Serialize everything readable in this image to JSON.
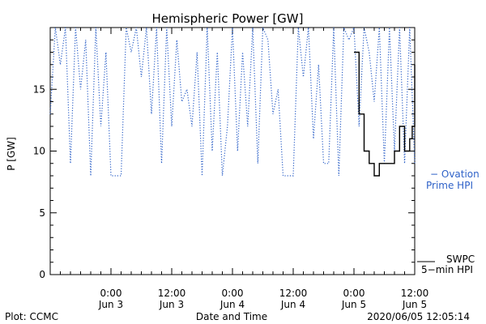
{
  "chart_data": {
    "type": "line",
    "title": "Hemispheric Power [GW]",
    "xlabel": "Date and Time",
    "ylabel": "P [GW]",
    "ylim": [
      0,
      20
    ],
    "yticks": [
      0,
      5,
      10,
      15
    ],
    "xlim": [
      "2020-06-02T12:00",
      "2020-06-05T12:00"
    ],
    "x_tick_labels": [
      {
        "t": "2020-06-03T00:00",
        "line1": "0:00",
        "line2": "Jun 3"
      },
      {
        "t": "2020-06-03T12:00",
        "line1": "12:00",
        "line2": "Jun 3"
      },
      {
        "t": "2020-06-04T00:00",
        "line1": "0:00",
        "line2": "Jun 4"
      },
      {
        "t": "2020-06-04T12:00",
        "line1": "12:00",
        "line2": "Jun 4"
      },
      {
        "t": "2020-06-05T00:00",
        "line1": "0:00",
        "line2": "Jun 5"
      },
      {
        "t": "2020-06-05T12:00",
        "line1": "12:00",
        "line2": "Jun 5"
      }
    ],
    "grid": false,
    "legend_placement": "right",
    "series": [
      {
        "name": "− Ovation Prime HPI",
        "legend_lines": [
          "− Ovation",
          "Prime HPI"
        ],
        "style": "dotted",
        "color": "#2f62c8",
        "x": [
          "2020-06-02T12:00",
          "2020-06-02T13:00",
          "2020-06-02T14:00",
          "2020-06-02T15:00",
          "2020-06-02T16:00",
          "2020-06-02T17:00",
          "2020-06-02T18:00",
          "2020-06-02T19:00",
          "2020-06-02T20:00",
          "2020-06-02T21:00",
          "2020-06-02T22:00",
          "2020-06-02T23:00",
          "2020-06-03T00:00",
          "2020-06-03T01:00",
          "2020-06-03T02:00",
          "2020-06-03T03:00",
          "2020-06-03T04:00",
          "2020-06-03T05:00",
          "2020-06-03T06:00",
          "2020-06-03T07:00",
          "2020-06-03T08:00",
          "2020-06-03T09:00",
          "2020-06-03T10:00",
          "2020-06-03T11:00",
          "2020-06-03T12:00",
          "2020-06-03T13:00",
          "2020-06-03T14:00",
          "2020-06-03T15:00",
          "2020-06-03T16:00",
          "2020-06-03T17:00",
          "2020-06-03T18:00",
          "2020-06-03T19:00",
          "2020-06-03T20:00",
          "2020-06-03T21:00",
          "2020-06-03T22:00",
          "2020-06-03T23:00",
          "2020-06-04T00:00",
          "2020-06-04T01:00",
          "2020-06-04T02:00",
          "2020-06-04T03:00",
          "2020-06-04T04:00",
          "2020-06-04T05:00",
          "2020-06-04T06:00",
          "2020-06-04T07:00",
          "2020-06-04T08:00",
          "2020-06-04T09:00",
          "2020-06-04T10:00",
          "2020-06-04T11:00",
          "2020-06-04T12:00",
          "2020-06-04T13:00",
          "2020-06-04T14:00",
          "2020-06-04T15:00",
          "2020-06-04T16:00",
          "2020-06-04T17:00",
          "2020-06-04T18:00",
          "2020-06-04T19:00",
          "2020-06-04T20:00",
          "2020-06-04T21:00",
          "2020-06-04T22:00",
          "2020-06-04T23:00",
          "2020-06-05T00:00",
          "2020-06-05T01:00",
          "2020-06-05T02:00",
          "2020-06-05T03:00",
          "2020-06-05T04:00",
          "2020-06-05T05:00",
          "2020-06-05T06:00",
          "2020-06-05T07:00",
          "2020-06-05T08:00",
          "2020-06-05T09:00",
          "2020-06-05T10:00",
          "2020-06-05T11:00",
          "2020-06-05T12:00"
        ],
        "y": [
          13,
          20,
          17,
          20,
          9,
          20,
          15,
          19,
          8,
          20,
          12,
          18,
          8,
          8,
          8,
          20,
          18,
          20,
          16,
          20,
          13,
          20,
          9,
          20,
          12,
          19,
          14,
          15,
          12,
          18,
          8,
          20,
          10,
          18,
          8,
          12,
          20,
          10,
          18,
          12,
          20,
          9,
          20,
          19,
          13,
          15,
          8,
          8,
          8,
          20,
          16,
          20,
          11,
          17,
          9,
          9,
          20,
          8,
          20,
          19,
          20,
          12,
          20,
          18,
          14,
          20,
          9,
          20,
          10,
          20,
          9,
          20,
          9
        ]
      },
      {
        "name": "SWPC 5−min HPI",
        "legend_lines": [
          "SWPC",
          "5−min HPI"
        ],
        "style": "solid",
        "color": "#000000",
        "x": [
          "2020-06-05T00:00",
          "2020-06-05T01:00",
          "2020-06-05T02:00",
          "2020-06-05T03:00",
          "2020-06-05T04:00",
          "2020-06-05T05:00",
          "2020-06-05T06:00",
          "2020-06-05T07:00",
          "2020-06-05T08:00",
          "2020-06-05T09:00",
          "2020-06-05T10:00",
          "2020-06-05T11:00",
          "2020-06-05T11:30",
          "2020-06-05T12:00"
        ],
        "y": [
          18,
          13,
          10,
          9,
          8,
          9,
          9,
          9,
          10,
          12,
          10,
          11,
          12,
          17
        ],
        "step": true
      }
    ],
    "footer_left": "Plot: CCMC",
    "footer_right": "2020/06/05 12:05:14"
  }
}
